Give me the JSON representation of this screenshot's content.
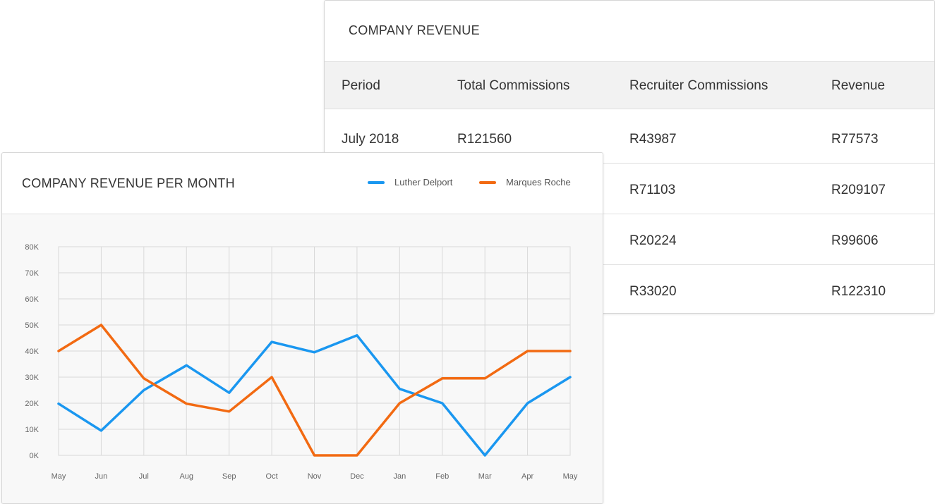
{
  "revenue_table": {
    "title": "COMPANY REVENUE",
    "columns": [
      "Period",
      "Total Commissions",
      "Recruiter Commissions",
      "Revenue"
    ],
    "rows": [
      [
        "July 2018",
        "R121560",
        "R43987",
        "R77573"
      ],
      [
        "",
        "",
        "R71103",
        "R209107"
      ],
      [
        "",
        "",
        "R20224",
        "R99606"
      ],
      [
        "",
        "",
        "R33020",
        "R122310"
      ]
    ]
  },
  "chart_card": {
    "title": "COMPANY REVENUE PER MONTH"
  },
  "chart_data": {
    "type": "line",
    "title": "COMPANY REVENUE PER MONTH",
    "xlabel": "",
    "ylabel": "",
    "categories": [
      "May",
      "Jun",
      "Jul",
      "Aug",
      "Sep",
      "Oct",
      "Nov",
      "Dec",
      "Jan",
      "Feb",
      "Mar",
      "Apr",
      "May"
    ],
    "ylim": [
      0,
      80000
    ],
    "yticks": [
      0,
      10000,
      20000,
      30000,
      40000,
      50000,
      60000,
      70000,
      80000
    ],
    "ytick_labels": [
      "0K",
      "10K",
      "20K",
      "30K",
      "40K",
      "50K",
      "60K",
      "70K",
      "80K"
    ],
    "grid": true,
    "legend_position": "top-right",
    "series": [
      {
        "name": "Luther Delport",
        "color": "#1a97f0",
        "values": [
          19800,
          9500,
          25000,
          34500,
          24000,
          43500,
          39500,
          46000,
          25500,
          20000,
          0,
          20000,
          30000
        ]
      },
      {
        "name": "Marques Roche",
        "color": "#f26a12",
        "values": [
          40000,
          50000,
          29500,
          19800,
          16800,
          30000,
          0,
          0,
          20000,
          29500,
          29500,
          40000,
          40000
        ]
      }
    ]
  }
}
